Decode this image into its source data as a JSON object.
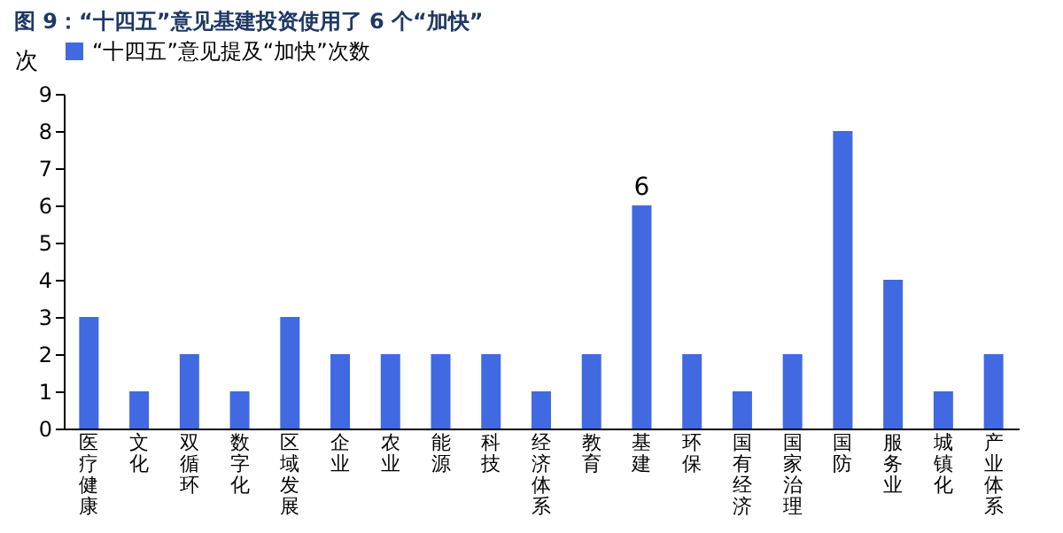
{
  "chart_data": {
    "type": "bar",
    "title": "图 9：“十四五”意见基建投资使用了 6 个“加快”",
    "ylabel": "次",
    "categories": [
      "医疗健康",
      "文化",
      "双循环",
      "数字化",
      "区域发展",
      "企业",
      "农业",
      "能源",
      "科技",
      "经济体系",
      "教育",
      "基建",
      "环保",
      "国有经济",
      "国家治理",
      "国防",
      "服务业",
      "城镇化",
      "产业体系"
    ],
    "series": [
      {
        "name": "“十四五”意见提及“加快”次数",
        "color": "#4169e1",
        "values": [
          3,
          1,
          2,
          1,
          3,
          2,
          2,
          2,
          2,
          1,
          2,
          6,
          2,
          1,
          2,
          8,
          4,
          1,
          2
        ],
        "value_labels": [
          null,
          null,
          null,
          null,
          null,
          null,
          null,
          null,
          null,
          null,
          null,
          "6",
          null,
          null,
          null,
          null,
          null,
          null,
          null
        ]
      }
    ],
    "ylim": [
      0,
      9
    ],
    "yticks": [
      0,
      1,
      2,
      3,
      4,
      5,
      6,
      7,
      8,
      9
    ],
    "grid": false,
    "legend": "top"
  }
}
